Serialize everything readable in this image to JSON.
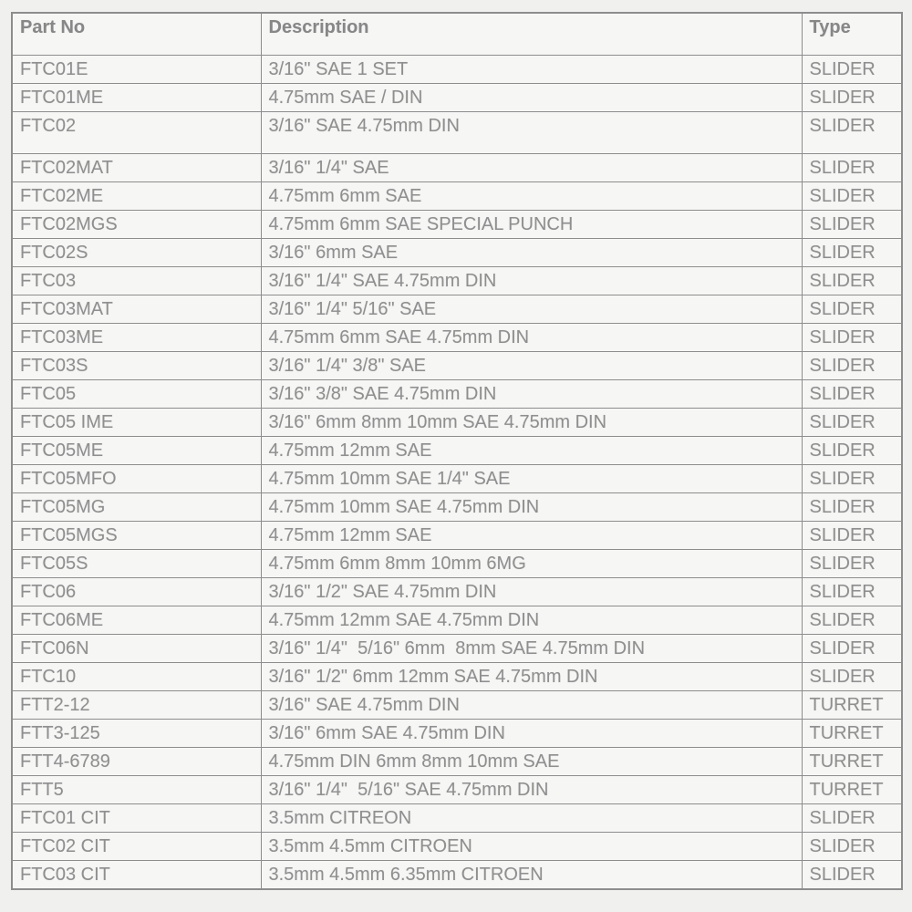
{
  "colors": {
    "page_background": "#f0f0ef",
    "cell_background": "#f6f6f5",
    "border": "#8d8d8d",
    "header_text": "#878787",
    "cell_text": "#8f8f8f"
  },
  "table": {
    "columns": [
      "Part No",
      "Description",
      "Type"
    ],
    "rows": [
      {
        "part": "FTC01E",
        "desc": "3/16\" SAE 1 SET",
        "type": "SLIDER",
        "tall": false
      },
      {
        "part": "FTC01ME",
        "desc": "4.75mm SAE / DIN",
        "type": "SLIDER",
        "tall": false
      },
      {
        "part": "FTC02",
        "desc": "3/16\" SAE 4.75mm DIN",
        "type": "SLIDER",
        "tall": true
      },
      {
        "part": "FTC02MAT",
        "desc": "3/16\" 1/4\" SAE",
        "type": "SLIDER",
        "tall": false
      },
      {
        "part": "FTC02ME",
        "desc": "4.75mm 6mm SAE",
        "type": "SLIDER",
        "tall": false
      },
      {
        "part": "FTC02MGS",
        "desc": "4.75mm 6mm SAE SPECIAL PUNCH",
        "type": "SLIDER",
        "tall": false
      },
      {
        "part": "FTC02S",
        "desc": "3/16\" 6mm SAE",
        "type": "SLIDER",
        "tall": false
      },
      {
        "part": "FTC03",
        "desc": "3/16\" 1/4\" SAE 4.75mm DIN",
        "type": "SLIDER",
        "tall": false
      },
      {
        "part": "FTC03MAT",
        "desc": "3/16\" 1/4\" 5/16\" SAE",
        "type": "SLIDER",
        "tall": false
      },
      {
        "part": "FTC03ME",
        "desc": "4.75mm 6mm SAE 4.75mm DIN",
        "type": "SLIDER",
        "tall": false
      },
      {
        "part": "FTC03S",
        "desc": "3/16\" 1/4\" 3/8\" SAE",
        "type": "SLIDER",
        "tall": false
      },
      {
        "part": "FTC05",
        "desc": "3/16\" 3/8\" SAE 4.75mm DIN",
        "type": "SLIDER",
        "tall": false
      },
      {
        "part": "FTC05 IME",
        "desc": "3/16\" 6mm 8mm 10mm SAE 4.75mm DIN",
        "type": "SLIDER",
        "tall": false
      },
      {
        "part": "FTC05ME",
        "desc": "4.75mm 12mm SAE",
        "type": "SLIDER",
        "tall": false
      },
      {
        "part": "FTC05MFO",
        "desc": "4.75mm 10mm SAE 1/4\" SAE",
        "type": "SLIDER",
        "tall": false
      },
      {
        "part": "FTC05MG",
        "desc": "4.75mm 10mm SAE 4.75mm DIN",
        "type": "SLIDER",
        "tall": false
      },
      {
        "part": "FTC05MGS",
        "desc": "4.75mm 12mm SAE",
        "type": "SLIDER",
        "tall": false
      },
      {
        "part": "FTC05S",
        "desc": "4.75mm 6mm 8mm 10mm 6MG",
        "type": "SLIDER",
        "tall": false
      },
      {
        "part": "FTC06",
        "desc": "3/16\" 1/2\" SAE 4.75mm DIN",
        "type": "SLIDER",
        "tall": false
      },
      {
        "part": "FTC06ME",
        "desc": "4.75mm 12mm SAE 4.75mm DIN",
        "type": "SLIDER",
        "tall": false
      },
      {
        "part": "FTC06N",
        "desc": "3/16\" 1/4\"  5/16\" 6mm  8mm SAE 4.75mm DIN",
        "type": "SLIDER",
        "tall": false
      },
      {
        "part": "FTC10",
        "desc": "3/16\" 1/2\" 6mm 12mm SAE 4.75mm DIN",
        "type": "SLIDER",
        "tall": false
      },
      {
        "part": "FTT2-12",
        "desc": "3/16\" SAE 4.75mm DIN",
        "type": "TURRET",
        "tall": false
      },
      {
        "part": "FTT3-125",
        "desc": "3/16\" 6mm SAE 4.75mm DIN",
        "type": "TURRET",
        "tall": false
      },
      {
        "part": "FTT4-6789",
        "desc": "4.75mm DIN 6mm 8mm 10mm SAE",
        "type": "TURRET",
        "tall": false
      },
      {
        "part": "FTT5",
        "desc": "3/16\" 1/4\"  5/16\" SAE 4.75mm DIN",
        "type": "TURRET",
        "tall": false
      },
      {
        "part": "FTC01 CIT",
        "desc": "3.5mm CITREON",
        "type": "SLIDER",
        "tall": false
      },
      {
        "part": "FTC02 CIT",
        "desc": "3.5mm 4.5mm CITROEN",
        "type": "SLIDER",
        "tall": false
      },
      {
        "part": "FTC03 CIT",
        "desc": "3.5mm 4.5mm 6.35mm CITROEN",
        "type": "SLIDER",
        "tall": false
      }
    ]
  }
}
